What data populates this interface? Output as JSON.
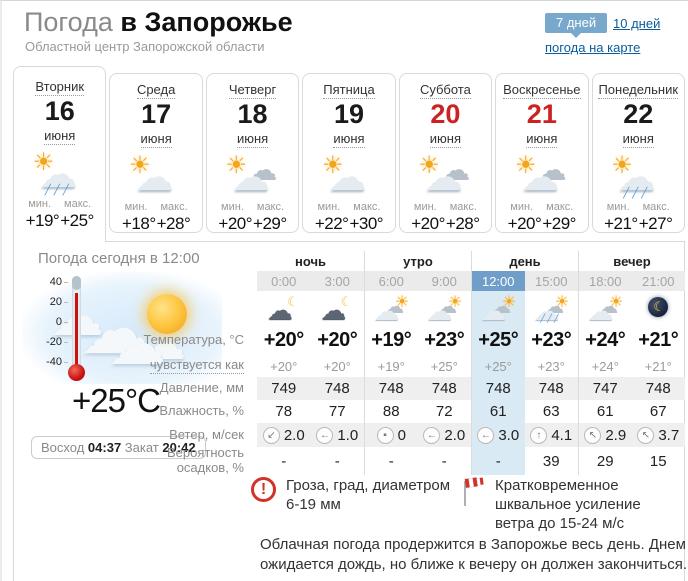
{
  "header": {
    "title_light": "Погода",
    "title_bold": "в Запорожье",
    "subtitle": "Областной центр Запорожской области"
  },
  "controls": {
    "days7": "7 дней",
    "days10": "10 дней",
    "map_link": "погода на карте"
  },
  "labels": {
    "min": "мин.",
    "max": "макс."
  },
  "day_tabs": [
    {
      "day": "Вторник",
      "date": "16",
      "month": "июня",
      "icon": "sun-cloud-rain",
      "min": "+19°",
      "max": "+25°",
      "weekend": false,
      "active": true
    },
    {
      "day": "Среда",
      "date": "17",
      "month": "июня",
      "icon": "sun-cloud",
      "min": "+18°",
      "max": "+28°",
      "weekend": false,
      "active": false
    },
    {
      "day": "Четверг",
      "date": "18",
      "month": "июня",
      "icon": "sun-clouds",
      "min": "+20°",
      "max": "+29°",
      "weekend": false,
      "active": false
    },
    {
      "day": "Пятница",
      "date": "19",
      "month": "июня",
      "icon": "sun-cloud",
      "min": "+22°",
      "max": "+30°",
      "weekend": false,
      "active": false
    },
    {
      "day": "Суббота",
      "date": "20",
      "month": "июня",
      "icon": "sun-clouds",
      "min": "+20°",
      "max": "+28°",
      "weekend": true,
      "active": false
    },
    {
      "day": "Воскресенье",
      "date": "21",
      "month": "июня",
      "icon": "sun-clouds",
      "min": "+20°",
      "max": "+29°",
      "weekend": true,
      "active": false
    },
    {
      "day": "Понедельник",
      "date": "22",
      "month": "июня",
      "icon": "sun-cloud-rain",
      "min": "+21°",
      "max": "+27°",
      "weekend": false,
      "active": false
    }
  ],
  "today": {
    "title": "Погода сегодня в 12:00",
    "current_temp": "+25°C",
    "sunrise_label": "Восход",
    "sunrise": "04:37",
    "sunset_label": "Закат",
    "sunset": "20:42",
    "thermo_scale": [
      "40",
      "20",
      "0",
      "-20",
      "-40"
    ]
  },
  "table": {
    "groups": [
      "ночь",
      "утро",
      "день",
      "вечер"
    ],
    "hours": [
      "0:00",
      "3:00",
      "6:00",
      "9:00",
      "12:00",
      "15:00",
      "18:00",
      "21:00"
    ],
    "active_hour_index": 4,
    "icons": [
      "moon-cloud",
      "moon-cloud",
      "cloud-sun",
      "cloud-sun",
      "cloud-sun",
      "cloud-sun-rain",
      "cloud-sun",
      "moon"
    ],
    "rows": [
      {
        "label": "Температура, °C",
        "style": "temp",
        "values": [
          "+20°",
          "+20°",
          "+19°",
          "+23°",
          "+25°",
          "+23°",
          "+24°",
          "+21°"
        ]
      },
      {
        "label": "чувствуется как",
        "style": "feels",
        "values": [
          "+20°",
          "+20°",
          "+19°",
          "+25°",
          "+25°",
          "+23°",
          "+24°",
          "+21°"
        ]
      },
      {
        "label": "Давление, мм",
        "style": "stripe",
        "values": [
          "749",
          "748",
          "748",
          "748",
          "748",
          "748",
          "747",
          "748"
        ]
      },
      {
        "label": "Влажность, %",
        "style": "plain",
        "values": [
          "78",
          "77",
          "88",
          "72",
          "61",
          "63",
          "61",
          "67"
        ]
      },
      {
        "label": "Ветер, м/сек",
        "style": "wind",
        "values": [
          "2.0",
          "1.0",
          "0",
          "2.0",
          "3.0",
          "4.1",
          "2.9",
          "3.7"
        ],
        "dirs": [
          "↙",
          "←",
          "▪",
          "←",
          "←",
          "↑",
          "↖",
          "↖"
        ]
      },
      {
        "label": "Вероятность осадков, %",
        "style": "plain",
        "values": [
          "-",
          "-",
          "-",
          "-",
          "-",
          "39",
          "29",
          "15"
        ]
      }
    ]
  },
  "warnings": [
    {
      "icon": "alert-icon",
      "text": "Гроза, град, диаметром 6-19 мм"
    },
    {
      "icon": "windsock-icon",
      "text": "Кратковременное шквальное усиление ветра до 15-24 м/с"
    }
  ],
  "summary": "Облачная погода продержится в Запорожье весь день. Днем ожидается дождь, но ближе к вечеру он должен закончиться.",
  "colors": {
    "accent_blue": "#79a8cd",
    "link_blue": "#0a5c9c",
    "active_hour_bg": "#6f9fc8",
    "highlight_col": "#d9eaf5",
    "weekend_red": "#cc2222"
  }
}
